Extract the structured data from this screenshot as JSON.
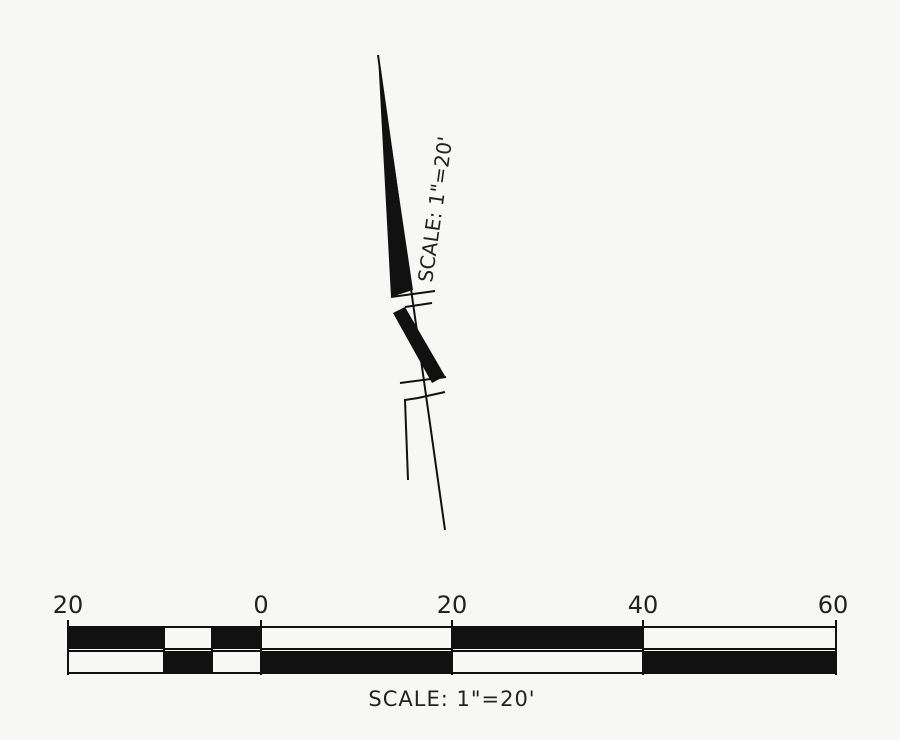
{
  "north_arrow": {
    "scale_text": "SCALE:  1\"=20'",
    "icon": "north-arrow-icon"
  },
  "scale_bar": {
    "tick_labels": [
      "20",
      "0",
      "20",
      "40",
      "60"
    ],
    "caption": "SCALE:  1\"=20'",
    "colors": {
      "ink": "#111111",
      "paper": "#f7f7f5"
    }
  }
}
